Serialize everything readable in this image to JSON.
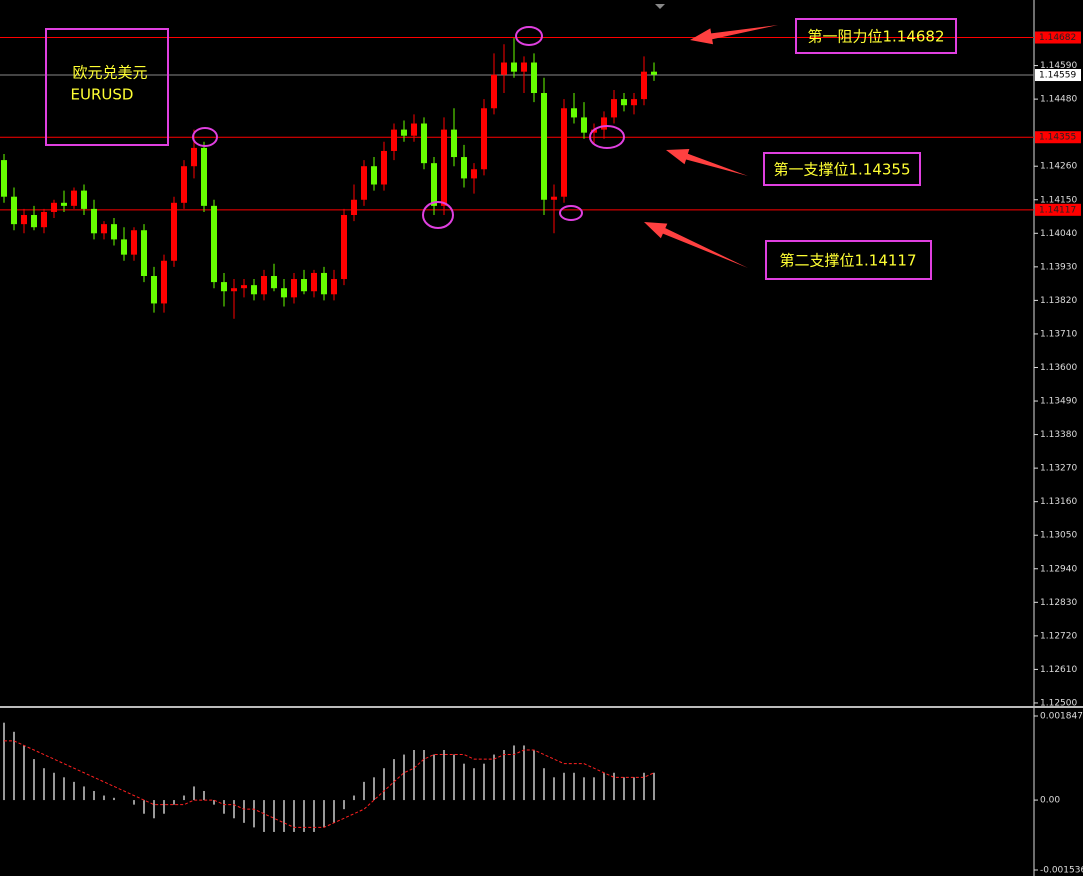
{
  "chart_data": [
    {
      "type": "candlestick",
      "title": "欧元兑美元",
      "subtitle": "EURUSD",
      "open": [
        1.1428,
        1.1416,
        1.1407,
        1.141,
        1.1406,
        1.1411,
        1.1414,
        1.1413,
        1.1418,
        1.1412,
        1.1404,
        1.1407,
        1.1402,
        1.1397,
        1.1405,
        1.139,
        1.1381,
        1.1395,
        1.1414,
        1.1426,
        1.1432,
        1.1413,
        1.1388,
        1.1385,
        1.1386,
        1.1387,
        1.1384,
        1.139,
        1.1386,
        1.1383,
        1.1389,
        1.1385,
        1.1391,
        1.1384,
        1.1389,
        1.141,
        1.1415,
        1.1426,
        1.142,
        1.1431,
        1.1438,
        1.1436,
        1.144,
        1.1427,
        1.1413,
        1.1438,
        1.1429,
        1.1422,
        1.1425,
        1.1445,
        1.1456,
        1.146,
        1.1457,
        1.146,
        1.145,
        1.1415,
        1.1416,
        1.1445,
        1.1442,
        1.1437,
        1.1438,
        1.1442,
        1.1448,
        1.1446,
        1.1448,
        1.1457
      ],
      "high": [
        1.143,
        1.1419,
        1.1412,
        1.1413,
        1.1412,
        1.1415,
        1.1418,
        1.1419,
        1.142,
        1.1415,
        1.1408,
        1.1409,
        1.1406,
        1.1406,
        1.1407,
        1.1393,
        1.1397,
        1.1416,
        1.1428,
        1.1438,
        1.1434,
        1.1415,
        1.1391,
        1.1389,
        1.1389,
        1.1389,
        1.1392,
        1.1394,
        1.1389,
        1.1391,
        1.1392,
        1.1392,
        1.1393,
        1.1392,
        1.1412,
        1.142,
        1.1428,
        1.1429,
        1.1434,
        1.144,
        1.1441,
        1.1443,
        1.1442,
        1.1429,
        1.1442,
        1.1445,
        1.1433,
        1.1427,
        1.1448,
        1.1463,
        1.1466,
        1.1468,
        1.1462,
        1.1463,
        1.1455,
        1.142,
        1.1448,
        1.145,
        1.1447,
        1.144,
        1.1444,
        1.1451,
        1.145,
        1.145,
        1.1462,
        1.146
      ],
      "low": [
        1.1414,
        1.1405,
        1.1404,
        1.1405,
        1.1404,
        1.1409,
        1.1411,
        1.1412,
        1.141,
        1.1402,
        1.1402,
        1.14,
        1.1395,
        1.1395,
        1.1388,
        1.1378,
        1.1378,
        1.1393,
        1.1412,
        1.1422,
        1.1411,
        1.1386,
        1.138,
        1.1376,
        1.1383,
        1.1382,
        1.1382,
        1.1385,
        1.138,
        1.1381,
        1.1384,
        1.1383,
        1.1382,
        1.1382,
        1.1387,
        1.1408,
        1.1413,
        1.1418,
        1.1418,
        1.1428,
        1.1434,
        1.1434,
        1.1425,
        1.141,
        1.141,
        1.1426,
        1.1419,
        1.1417,
        1.1423,
        1.1443,
        1.145,
        1.1455,
        1.145,
        1.1447,
        1.141,
        1.1404,
        1.1414,
        1.144,
        1.1435,
        1.1433,
        1.1435,
        1.144,
        1.1444,
        1.1443,
        1.1446,
        1.1454
      ],
      "close": [
        1.1416,
        1.1407,
        1.141,
        1.1406,
        1.1411,
        1.1414,
        1.1413,
        1.1418,
        1.1412,
        1.1404,
        1.1407,
        1.1402,
        1.1397,
        1.1405,
        1.139,
        1.1381,
        1.1395,
        1.1414,
        1.1426,
        1.1432,
        1.1413,
        1.1388,
        1.1385,
        1.1386,
        1.1387,
        1.1384,
        1.139,
        1.1386,
        1.1383,
        1.1389,
        1.1385,
        1.1391,
        1.1384,
        1.1389,
        1.141,
        1.1415,
        1.1426,
        1.142,
        1.1431,
        1.1438,
        1.1436,
        1.144,
        1.1427,
        1.1413,
        1.1438,
        1.1429,
        1.1422,
        1.1425,
        1.1445,
        1.1456,
        1.146,
        1.1457,
        1.146,
        1.145,
        1.1415,
        1.1416,
        1.1445,
        1.1442,
        1.1437,
        1.1438,
        1.1442,
        1.1448,
        1.1446,
        1.1448,
        1.1457,
        1.1456
      ],
      "up_color": "#ff0000",
      "down_color": "#66ff00",
      "ylim": [
        1.1249,
        1.14805
      ],
      "yticks": [
        {
          "value": 1.1459,
          "label": "1.14590"
        },
        {
          "value": 1.1448,
          "label": "1.14480"
        },
        {
          "value": 1.1426,
          "label": "1.14260"
        },
        {
          "value": 1.1415,
          "label": "1.14150"
        },
        {
          "value": 1.1404,
          "label": "1.14040"
        },
        {
          "value": 1.1393,
          "label": "1.13930"
        },
        {
          "value": 1.1382,
          "label": "1.13820"
        },
        {
          "value": 1.1371,
          "label": "1.13710"
        },
        {
          "value": 1.136,
          "label": "1.13600"
        },
        {
          "value": 1.1349,
          "label": "1.13490"
        },
        {
          "value": 1.1338,
          "label": "1.13380"
        },
        {
          "value": 1.1327,
          "label": "1.13270"
        },
        {
          "value": 1.1316,
          "label": "1.13160"
        },
        {
          "value": 1.1305,
          "label": "1.13050"
        },
        {
          "value": 1.1294,
          "label": "1.12940"
        },
        {
          "value": 1.1283,
          "label": "1.12830"
        },
        {
          "value": 1.1272,
          "label": "1.12720"
        },
        {
          "value": 1.1261,
          "label": "1.12610"
        },
        {
          "value": 1.125,
          "label": "1.12500"
        }
      ],
      "levels": [
        {
          "value": 1.14682,
          "label": "1.14682"
        },
        {
          "value": 1.14355,
          "label": "1.14355"
        },
        {
          "value": 1.14117,
          "label": "1.14117"
        }
      ],
      "level_color": "#ff0000",
      "last_price": {
        "value": 1.14559,
        "label": "1.14559"
      },
      "annotations": [
        "第一阻力位1.14682",
        "第一支撑位1.14355",
        "第二支撑位1.14117"
      ]
    },
    {
      "type": "macd",
      "values": [
        0.0017,
        0.0015,
        0.0012,
        0.0009,
        0.0007,
        0.0006,
        0.0005,
        0.0004,
        0.0003,
        0.0002,
        0.0001,
        5e-05,
        0,
        -0.0001,
        -0.0003,
        -0.0004,
        -0.0003,
        -0.0001,
        0.0001,
        0.0003,
        0.0002,
        -0.0001,
        -0.0003,
        -0.0004,
        -0.0005,
        -0.0006,
        -0.0007,
        -0.0007,
        -0.0007,
        -0.0007,
        -0.0007,
        -0.0007,
        -0.0006,
        -0.0005,
        -0.0002,
        0.0001,
        0.0004,
        0.0005,
        0.0007,
        0.0009,
        0.001,
        0.0011,
        0.0011,
        0.001,
        0.0011,
        0.001,
        0.0008,
        0.0007,
        0.0008,
        0.001,
        0.0011,
        0.0012,
        0.0012,
        0.0011,
        0.0007,
        0.0005,
        0.0006,
        0.0006,
        0.0005,
        0.0005,
        0.0006,
        0.0006,
        0.0005,
        0.0005,
        0.0006,
        0.0006
      ],
      "signal": [
        0.0013,
        0.0013,
        0.0012,
        0.0011,
        0.001,
        0.0009,
        0.0008,
        0.0007,
        0.0006,
        0.0005,
        0.0004,
        0.0003,
        0.0002,
        0.0001,
        0,
        -0.0001,
        -0.0001,
        -0.0001,
        -0.0001,
        0,
        0,
        0,
        -0.0001,
        -0.0001,
        -0.0002,
        -0.0002,
        -0.0003,
        -0.0004,
        -0.0005,
        -0.0006,
        -0.0006,
        -0.0006,
        -0.0006,
        -0.0005,
        -0.0004,
        -0.0003,
        -0.0002,
        0,
        0.0002,
        0.0004,
        0.0006,
        0.0007,
        0.0009,
        0.001,
        0.001,
        0.001,
        0.001,
        0.0009,
        0.0009,
        0.0009,
        0.001,
        0.001,
        0.0011,
        0.0011,
        0.001,
        0.0009,
        0.0008,
        0.0008,
        0.0008,
        0.0007,
        0.0006,
        0.0005,
        0.0005,
        0.0005,
        0.0005,
        0.0006
      ],
      "color": "#ffffff",
      "signal_color": "#ff2020",
      "ylim": [
        -0.001536,
        0.001847
      ],
      "yticks": [
        0.001847,
        {
          "value": 0,
          "label": "0.00"
        },
        -0.001536
      ]
    }
  ]
}
